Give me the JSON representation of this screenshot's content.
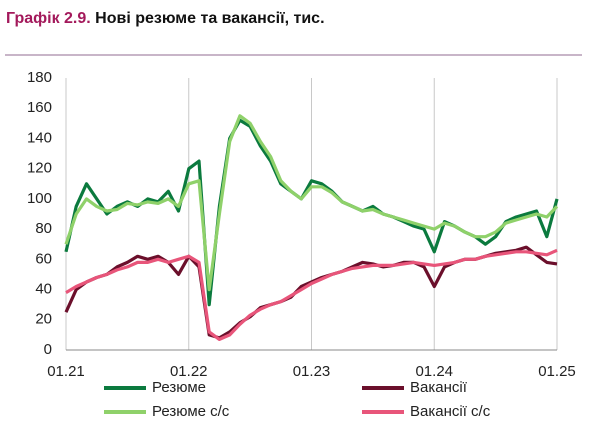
{
  "chart_data": {
    "type": "line",
    "label": "Графік 2.9.",
    "title": "Нові резюме та вакансії, тис.",
    "categories": [
      "01.21",
      null,
      null,
      null,
      null,
      null,
      null,
      null,
      null,
      null,
      null,
      null,
      "01.22",
      null,
      null,
      null,
      null,
      null,
      null,
      null,
      null,
      null,
      null,
      null,
      "01.23",
      null,
      null,
      null,
      null,
      null,
      null,
      null,
      null,
      null,
      null,
      null,
      "01.24",
      null,
      null,
      null,
      null,
      null,
      null,
      null,
      null,
      null,
      null,
      null,
      "01.25"
    ],
    "ylim": [
      0,
      180
    ],
    "yticks": [
      0,
      20,
      40,
      60,
      80,
      100,
      120,
      140,
      160,
      180
    ],
    "grid": true,
    "series": [
      {
        "name": "Резюме",
        "color": "#0b7a3e",
        "values": [
          65,
          95,
          110,
          100,
          90,
          95,
          98,
          95,
          100,
          98,
          105,
          92,
          120,
          125,
          30,
          95,
          140,
          152,
          148,
          135,
          125,
          110,
          105,
          100,
          112,
          110,
          105,
          98,
          95,
          92,
          95,
          90,
          88,
          85,
          82,
          80,
          65,
          85,
          82,
          78,
          75,
          70,
          75,
          85,
          88,
          90,
          92,
          75,
          100
        ]
      },
      {
        "name": "Вакансії",
        "color": "#6b0f2b",
        "values": [
          25,
          40,
          45,
          48,
          50,
          55,
          58,
          62,
          60,
          62,
          58,
          50,
          62,
          55,
          10,
          8,
          12,
          18,
          22,
          28,
          30,
          32,
          35,
          42,
          45,
          48,
          50,
          52,
          55,
          58,
          57,
          55,
          56,
          58,
          58,
          55,
          42,
          55,
          58,
          60,
          60,
          62,
          64,
          65,
          66,
          68,
          63,
          58,
          57
        ]
      },
      {
        "name": "Резюме с/с",
        "color": "#8fd16a",
        "values": [
          70,
          90,
          100,
          95,
          92,
          93,
          97,
          96,
          98,
          97,
          100,
          95,
          110,
          112,
          40,
          90,
          138,
          155,
          150,
          138,
          128,
          112,
          105,
          100,
          108,
          108,
          104,
          98,
          95,
          92,
          93,
          90,
          88,
          86,
          84,
          82,
          80,
          84,
          82,
          78,
          75,
          75,
          78,
          84,
          86,
          88,
          90,
          88,
          95
        ]
      },
      {
        "name": "Вакансії с/с",
        "color": "#e8557a",
        "values": [
          38,
          42,
          45,
          48,
          50,
          53,
          55,
          58,
          58,
          60,
          58,
          60,
          62,
          58,
          12,
          7,
          10,
          17,
          23,
          27,
          30,
          32,
          36,
          40,
          44,
          47,
          50,
          52,
          54,
          55,
          56,
          56,
          56,
          57,
          58,
          57,
          56,
          57,
          58,
          60,
          60,
          62,
          63,
          64,
          65,
          65,
          64,
          63,
          66
        ]
      }
    ]
  }
}
